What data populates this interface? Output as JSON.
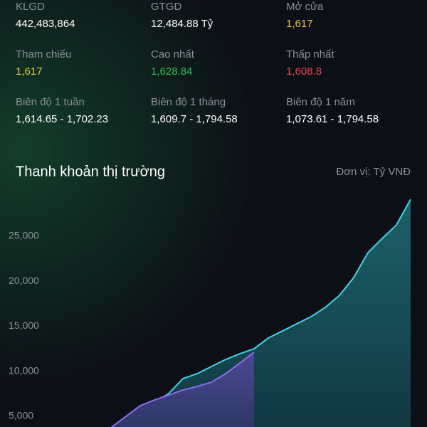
{
  "stats": [
    {
      "label": "KLGD",
      "value": "442,483,864",
      "color": "#ffffff"
    },
    {
      "label": "GTGD",
      "value": "12,484.88 Tỷ",
      "color": "#ffffff"
    },
    {
      "label": "Mở cửa",
      "value": "1,617",
      "color": "#e8c53a"
    },
    {
      "label": "Tham chiếu",
      "value": "1,617",
      "color": "#e8c53a"
    },
    {
      "label": "Cao nhất",
      "value": "1,628.84",
      "color": "#2ebd5a"
    },
    {
      "label": "Thấp nhất",
      "value": "1,608.8",
      "color": "#e8414a"
    },
    {
      "label": "Biên độ 1 tuần",
      "value": "1,614.65 - 1,702.23",
      "color": "#ffffff"
    },
    {
      "label": "Biên độ 1 tháng",
      "value": "1,609.7 - 1,794.58",
      "color": "#ffffff"
    },
    {
      "label": "Biên độ 1 năm",
      "value": "1,073.61 - 1,794.58",
      "color": "#ffffff"
    }
  ],
  "chart_data": {
    "type": "area",
    "title": "Thanh khoản thị trường",
    "subtitle": "Đơn vị: Tỷ VNĐ",
    "categories": [
      null,
      null,
      null,
      null,
      null,
      null,
      null,
      null,
      null,
      null,
      null,
      null,
      null,
      null,
      null,
      null,
      null,
      null,
      null,
      null,
      null,
      null
    ],
    "series": [
      {
        "color": "#3fd3e6",
        "values": [
          3800,
          4740,
          5770,
          6560,
          7510,
          9170,
          9720,
          10510,
          11300,
          11940,
          12490,
          13680,
          14470,
          15260,
          16050,
          17080,
          18420,
          20400,
          23160,
          24740,
          26240,
          29100
        ]
      },
      {
        "color": "#8a6cf0",
        "values": [
          3800,
          4980,
          6170,
          6800,
          7350,
          7900,
          8300,
          8770,
          9720,
          10900,
          12100,
          null,
          null,
          null,
          null,
          null,
          null,
          null,
          null,
          null,
          null,
          null
        ]
      }
    ],
    "ylim": [
      3800,
      29100
    ],
    "yticks": [
      {
        "value": 5000,
        "label": "5,000"
      },
      {
        "value": 10000,
        "label": "10,000"
      },
      {
        "value": 15000,
        "label": "15,000"
      },
      {
        "value": 20000,
        "label": "20,000"
      },
      {
        "value": 25000,
        "label": "25,000"
      }
    ]
  }
}
